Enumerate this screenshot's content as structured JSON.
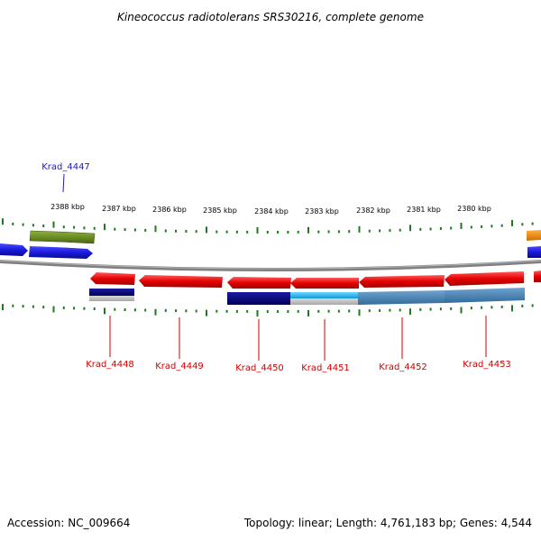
{
  "title": "Kineococcus radiotolerans SRS30216, complete genome",
  "ruler": {
    "labels": [
      "2388 kbp",
      "2387 kbp",
      "2386 kbp",
      "2385 kbp",
      "2384 kbp",
      "2383 kbp",
      "2382 kbp",
      "2381 kbp",
      "2380 kbp"
    ]
  },
  "genes": [
    {
      "id": "Krad_4447",
      "strand": "forward",
      "color": "#1a1adb"
    },
    {
      "id": "Krad_4448",
      "strand": "reverse",
      "color": "#e60000"
    },
    {
      "id": "Krad_4449",
      "strand": "reverse",
      "color": "#e60000"
    },
    {
      "id": "Krad_4450",
      "strand": "reverse",
      "color": "#e60000"
    },
    {
      "id": "Krad_4451",
      "strand": "reverse",
      "color": "#e60000"
    },
    {
      "id": "Krad_4452",
      "strand": "reverse",
      "color": "#e60000"
    },
    {
      "id": "Krad_4453",
      "strand": "reverse",
      "color": "#e60000"
    }
  ],
  "colors": {
    "forward_label": "#1a1acc",
    "reverse_label": "#cc0000",
    "tick": "#1f7a1f",
    "backbone": "#808080",
    "feature_green": "#6b8e23",
    "feature_orange": "#f08c00",
    "feature_navy": "#000080",
    "feature_cyan": "#1eb4f0",
    "feature_steel": "#4682b4"
  },
  "footer": {
    "accession": "Accession: NC_009664",
    "topology": "Topology: linear; Length: 4,761,183 bp; Genes: 4,544"
  }
}
